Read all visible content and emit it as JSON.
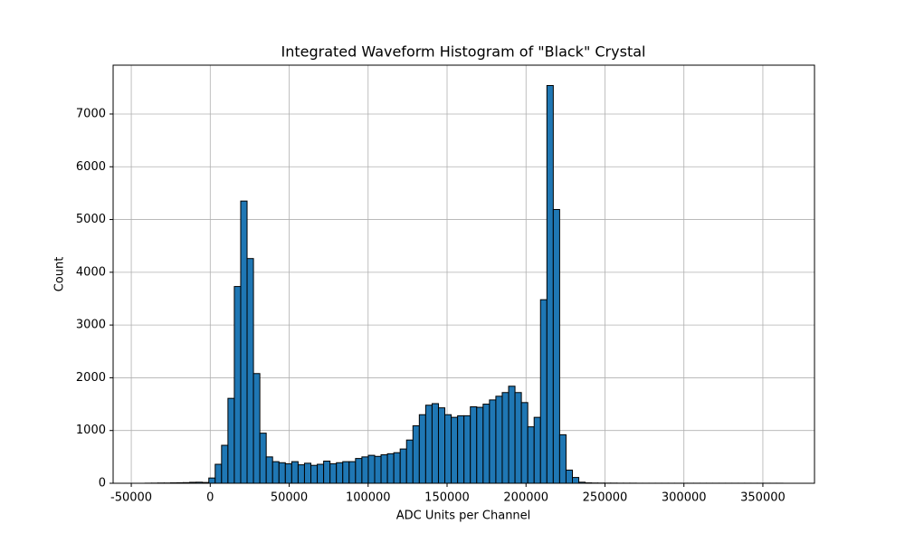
{
  "chart_data": {
    "type": "histogram",
    "title": "Integrated Waveform Histogram of \"Black\" Crystal",
    "x_label": "ADC Units per Channel",
    "y_label": "Count",
    "bins": [
      -41300,
      -37260,
      -33220,
      -29180,
      -25140,
      -21100,
      -17060,
      -13020,
      -8980,
      -4940,
      -900,
      3140,
      7180,
      11220,
      15260,
      19300,
      23340,
      27380,
      31420,
      35460,
      39500,
      43540,
      47580,
      51620,
      55660,
      59700,
      63740,
      67780,
      71820,
      75860,
      79900,
      83940,
      87980,
      92020,
      96060,
      100100,
      104140,
      108180,
      112220,
      116260,
      120300,
      124340,
      128380,
      132420,
      136460,
      140500,
      144540,
      148580,
      152620,
      156660,
      160700,
      164740,
      168780,
      172820,
      176860,
      180900,
      184940,
      188980,
      193020,
      197060,
      201100,
      205140,
      209180,
      213220,
      217260,
      221300,
      225340,
      229380,
      233420,
      237460,
      241500,
      245540,
      249580,
      253620,
      257660,
      261700,
      265740,
      269780,
      273820,
      277860,
      281900,
      285940,
      289980,
      294020,
      298060,
      302100,
      306140,
      310180,
      314220,
      318260,
      322300,
      326340,
      330380,
      334420,
      338460,
      342500,
      346540,
      350580,
      354620,
      358660,
      362700
    ],
    "counts": [
      2,
      3,
      5,
      5,
      8,
      10,
      12,
      18,
      20,
      15,
      100,
      360,
      720,
      1610,
      3730,
      5350,
      4260,
      2080,
      950,
      500,
      410,
      390,
      370,
      410,
      350,
      380,
      340,
      360,
      420,
      370,
      390,
      410,
      410,
      470,
      500,
      530,
      510,
      540,
      560,
      580,
      650,
      820,
      1090,
      1300,
      1480,
      1510,
      1430,
      1300,
      1250,
      1280,
      1280,
      1450,
      1440,
      1500,
      1580,
      1650,
      1720,
      1840,
      1720,
      1530,
      1070,
      1250,
      3480,
      7540,
      5190,
      920,
      250,
      110,
      20,
      8,
      5,
      4,
      3,
      3,
      2,
      2,
      2,
      1,
      1,
      1,
      1,
      1,
      1,
      1,
      1,
      1,
      1,
      1,
      1,
      1,
      1,
      1,
      1,
      1,
      1,
      1,
      1,
      1,
      1,
      1,
      1
    ],
    "color": "#1f77b4",
    "edgecolor": "#000000",
    "xlim": [
      -61500,
      382700
    ],
    "xticks": [
      -50000,
      0,
      50000,
      100000,
      150000,
      200000,
      250000,
      300000,
      350000
    ],
    "ylim": [
      0,
      7926
    ],
    "yticks": [
      0,
      1000,
      2000,
      3000,
      4000,
      5000,
      6000,
      7000
    ],
    "grid": true
  }
}
